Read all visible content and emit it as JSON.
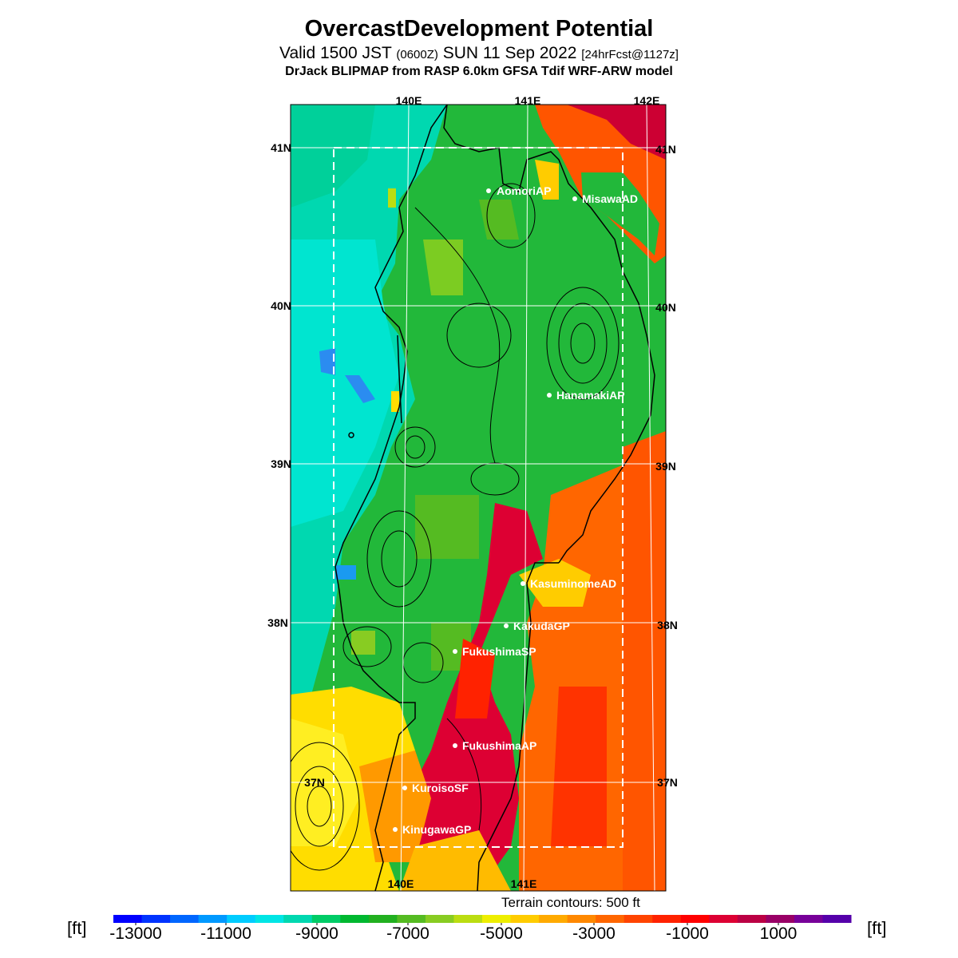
{
  "header": {
    "title": "OvercastDevelopment Potential",
    "valid_prefix": "Valid 1500 JST",
    "valid_zulu": "(0600Z)",
    "valid_date": "SUN 11 Sep 2022",
    "valid_fcst": "[24hrFcst@1127z]",
    "model_line": "DrJack BLIPMAP from RASP 6.0km GFSA Tdif WRF-ARW model"
  },
  "map": {
    "lon_labels_top": [
      "140E",
      "141E",
      "142E"
    ],
    "lon_labels_bottom": [
      "140E",
      "141E"
    ],
    "lat_labels": [
      "41N",
      "40N",
      "39N",
      "38N",
      "37N"
    ],
    "stations": [
      {
        "name": "AomoriAP"
      },
      {
        "name": "MisawaAD"
      },
      {
        "name": "HanamakiAP"
      },
      {
        "name": "KasuminomeAD"
      },
      {
        "name": "KakudaGP"
      },
      {
        "name": "FukushimaSP"
      },
      {
        "name": "FukushimaAP"
      },
      {
        "name": "KuroisoSF"
      },
      {
        "name": "KinugawaGP"
      }
    ]
  },
  "contour_note": "Terrain contours: 500 ft",
  "colorbar": {
    "unit_left": "[ft]",
    "unit_right": "[ft]",
    "labels": [
      "-13000",
      "-11000",
      "-9000",
      "-7000",
      "-5000",
      "-3000",
      "-1000",
      "1000"
    ],
    "colors": [
      "#0000ff",
      "#0033ff",
      "#0066ff",
      "#0099ff",
      "#00ccff",
      "#00e5e5",
      "#00d8b0",
      "#00cc66",
      "#00b830",
      "#22b020",
      "#55bb22",
      "#88cc22",
      "#bbdd11",
      "#eeee00",
      "#ffcc00",
      "#ffaa00",
      "#ff8800",
      "#ff6600",
      "#ff4400",
      "#ff2200",
      "#ff0000",
      "#dd0033",
      "#bb0044",
      "#990066",
      "#770099",
      "#5500aa"
    ]
  }
}
